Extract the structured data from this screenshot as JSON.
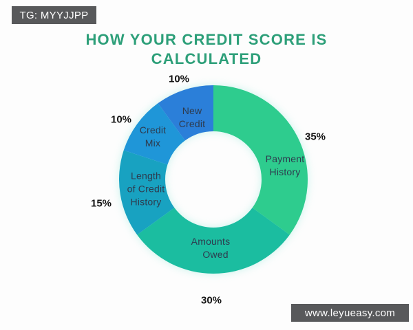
{
  "watermarks": {
    "top": "TG: MYYJJPP",
    "bottom": "www.leyueasy.com",
    "badge_bg": "#58595b",
    "text_color": "#ffffff"
  },
  "title": {
    "line1": "HOW YOUR CREDIT SCORE IS",
    "line2": "CALCULATED",
    "color": "#2d9f79"
  },
  "chart_data": {
    "type": "pie",
    "style": "donut",
    "title": "How Your Credit Score Is Calculated",
    "start_angle_deg": 0,
    "direction": "clockwise",
    "legend_position": "none",
    "labels_on_slices": true,
    "label_color": "#2e3b4e",
    "pct_color": "#141414",
    "segments": [
      {
        "label": "Payment History",
        "lines": [
          "Payment",
          "History"
        ],
        "value": 35,
        "pct_label": "35%",
        "color": "#2ecc8e"
      },
      {
        "label": "Amounts Owed",
        "lines": [
          "Amounts",
          "Owed"
        ],
        "value": 30,
        "pct_label": "30%",
        "color": "#1bbda0"
      },
      {
        "label": "Length of Credit History",
        "lines": [
          "Length",
          "of Credit",
          "History"
        ],
        "value": 15,
        "pct_label": "15%",
        "color": "#18a2c1"
      },
      {
        "label": "Credit Mix",
        "lines": [
          "Credit",
          "Mix"
        ],
        "value": 10,
        "pct_label": "10%",
        "color": "#1f96d8"
      },
      {
        "label": "New Credit",
        "lines": [
          "New",
          "Credit"
        ],
        "value": 10,
        "pct_label": "10%",
        "color": "#2b7fd9"
      }
    ]
  }
}
